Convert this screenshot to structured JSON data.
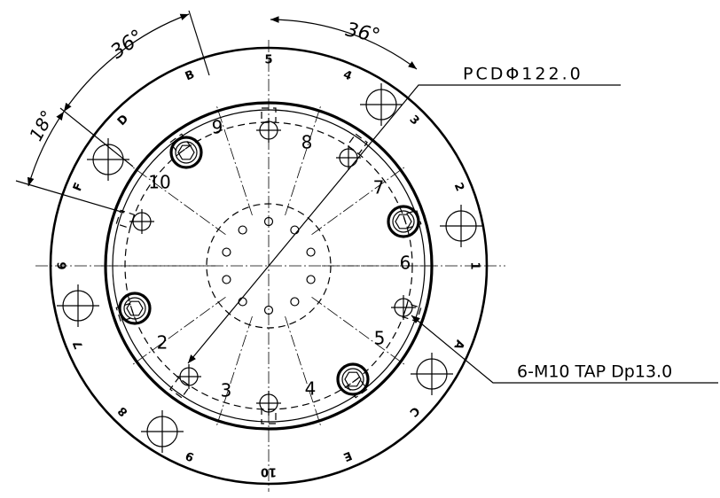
{
  "dimensions": [
    "36°",
    "36°",
    "18°"
  ],
  "callouts": {
    "pcd": "PCDΦ122.0",
    "tap": "6-M10 TAP Dp13.0"
  },
  "outer_labels": [
    "1",
    "2",
    "3",
    "4",
    "5",
    "B",
    "D",
    "F",
    "6",
    "7",
    "8",
    "9",
    "10",
    "E",
    "C",
    "A"
  ],
  "inner_labels": [
    "6",
    "7",
    "8",
    "9",
    "10",
    "2",
    "3",
    "4",
    "5"
  ]
}
